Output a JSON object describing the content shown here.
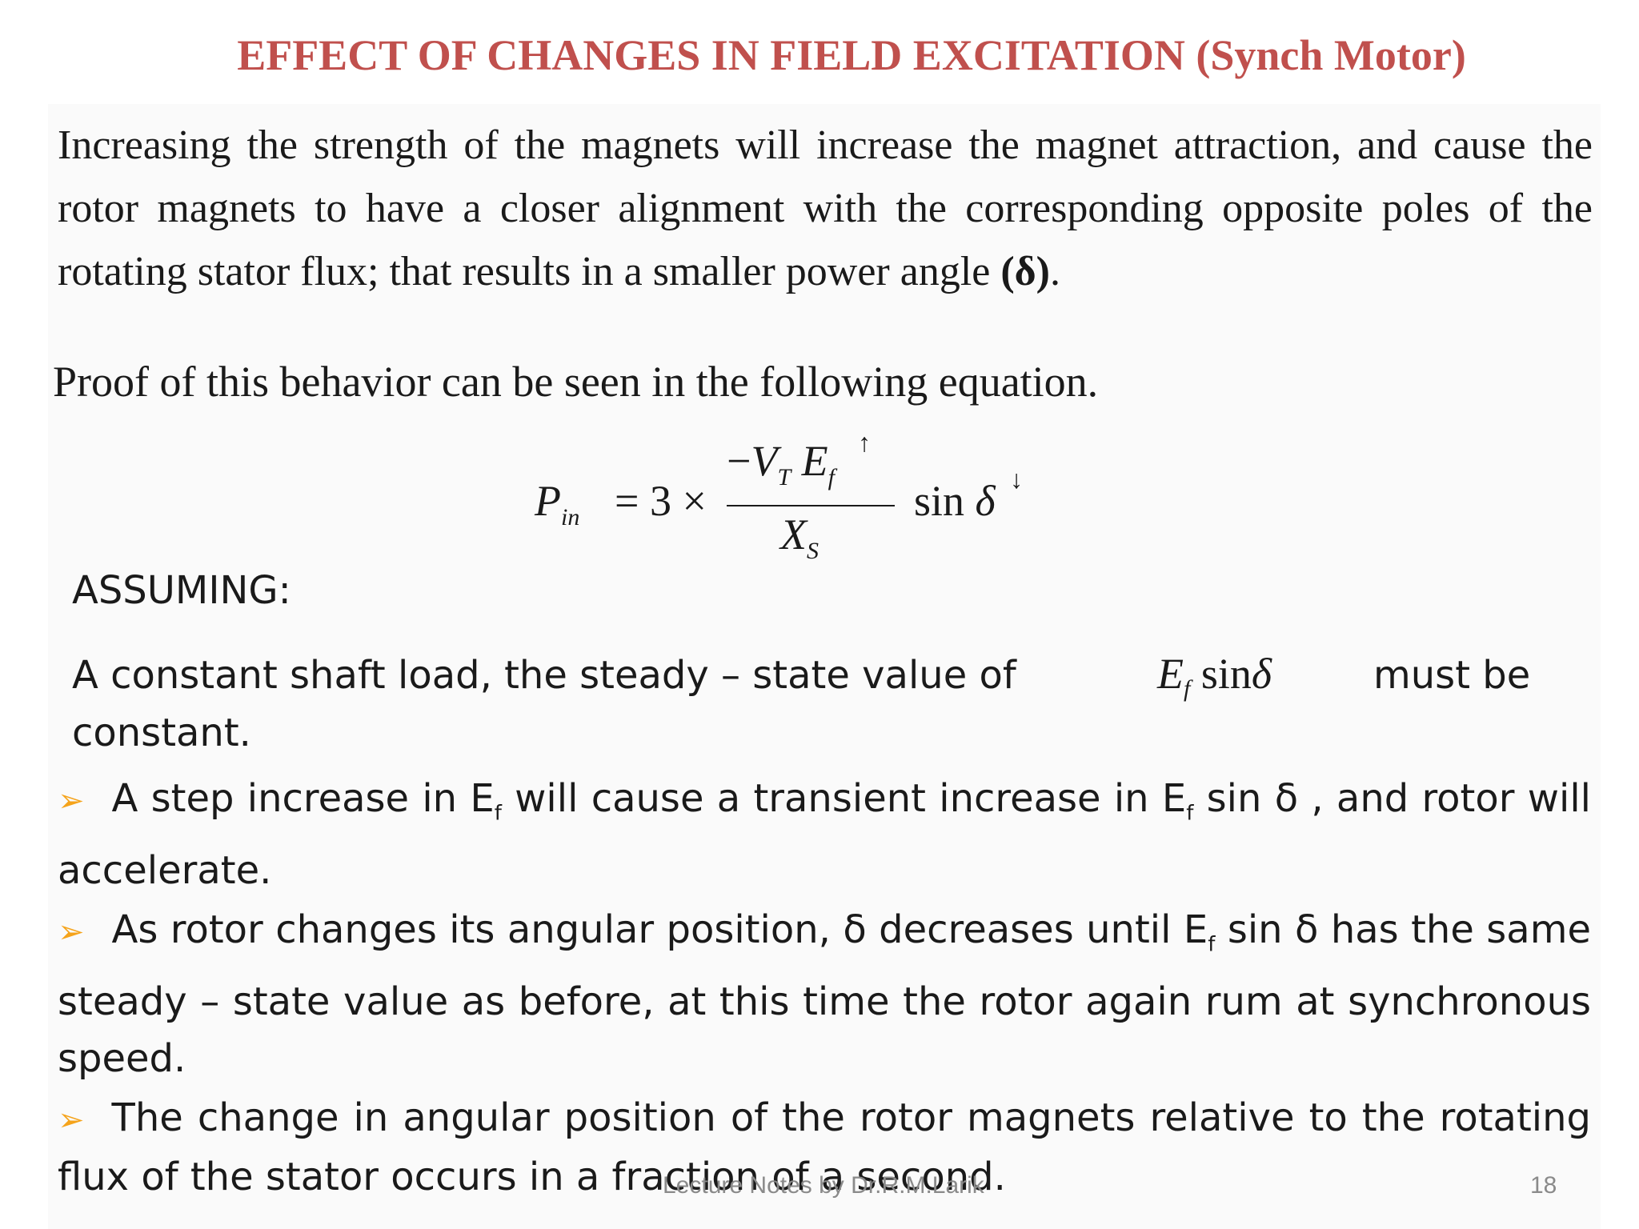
{
  "title": "EFFECT OF CHANGES IN FIELD EXCITATION (Synch Motor)",
  "intro": {
    "text": "Increasing the strength of the magnets will increase the magnet attraction, and cause the rotor magnets to have a closer alignment with the corresponding opposite poles of the rotating stator flux; that  results in a smaller power angle ",
    "delta": "(δ)",
    "end": "."
  },
  "proof": "Proof of this behavior can be seen in the following equation.",
  "equation": {
    "lhs": "P",
    "lhs_sub": "in",
    "equals_times": "= 3 ×",
    "numerator_minus": "−",
    "numerator_v": "V",
    "numerator_v_sub": "T",
    "numerator_e": "E",
    "numerator_e_sub": "f",
    "up_arrow": "↑",
    "denominator": "X",
    "denominator_sub": "S",
    "sin": "sin",
    "delta": "δ",
    "down_arrow": "↓"
  },
  "assuming": "ASSUMING:",
  "constant": {
    "before": "A constant shaft load, the steady – state value of",
    "e": "E",
    "e_sub": "f",
    "sin": "sin",
    "delta": "δ",
    "after": "must be",
    "line2": "constant."
  },
  "bullets": [
    {
      "a": "A step increase in E",
      "sub1": "f",
      "b": " will cause a transient increase in E",
      "sub2": "f",
      "c": " sin δ , and rotor will accelerate."
    },
    {
      "a": "As rotor changes its angular position, δ decreases until E",
      "sub1": "f",
      "b": " sin δ has the same steady – state value as before, at this time the rotor again rum at synchronous speed."
    },
    {
      "a": "The change in angular position of the rotor magnets relative to the rotating flux of the stator occurs in a fraction of a second."
    }
  ],
  "bullet_marker": "➢",
  "footer": {
    "notes": "Lecture Notes by Dr.R.M.Larik",
    "page": "18"
  },
  "colors": {
    "title": "#c0504d",
    "bullet": "#f5a31a",
    "footer": "#8a8a8a"
  }
}
